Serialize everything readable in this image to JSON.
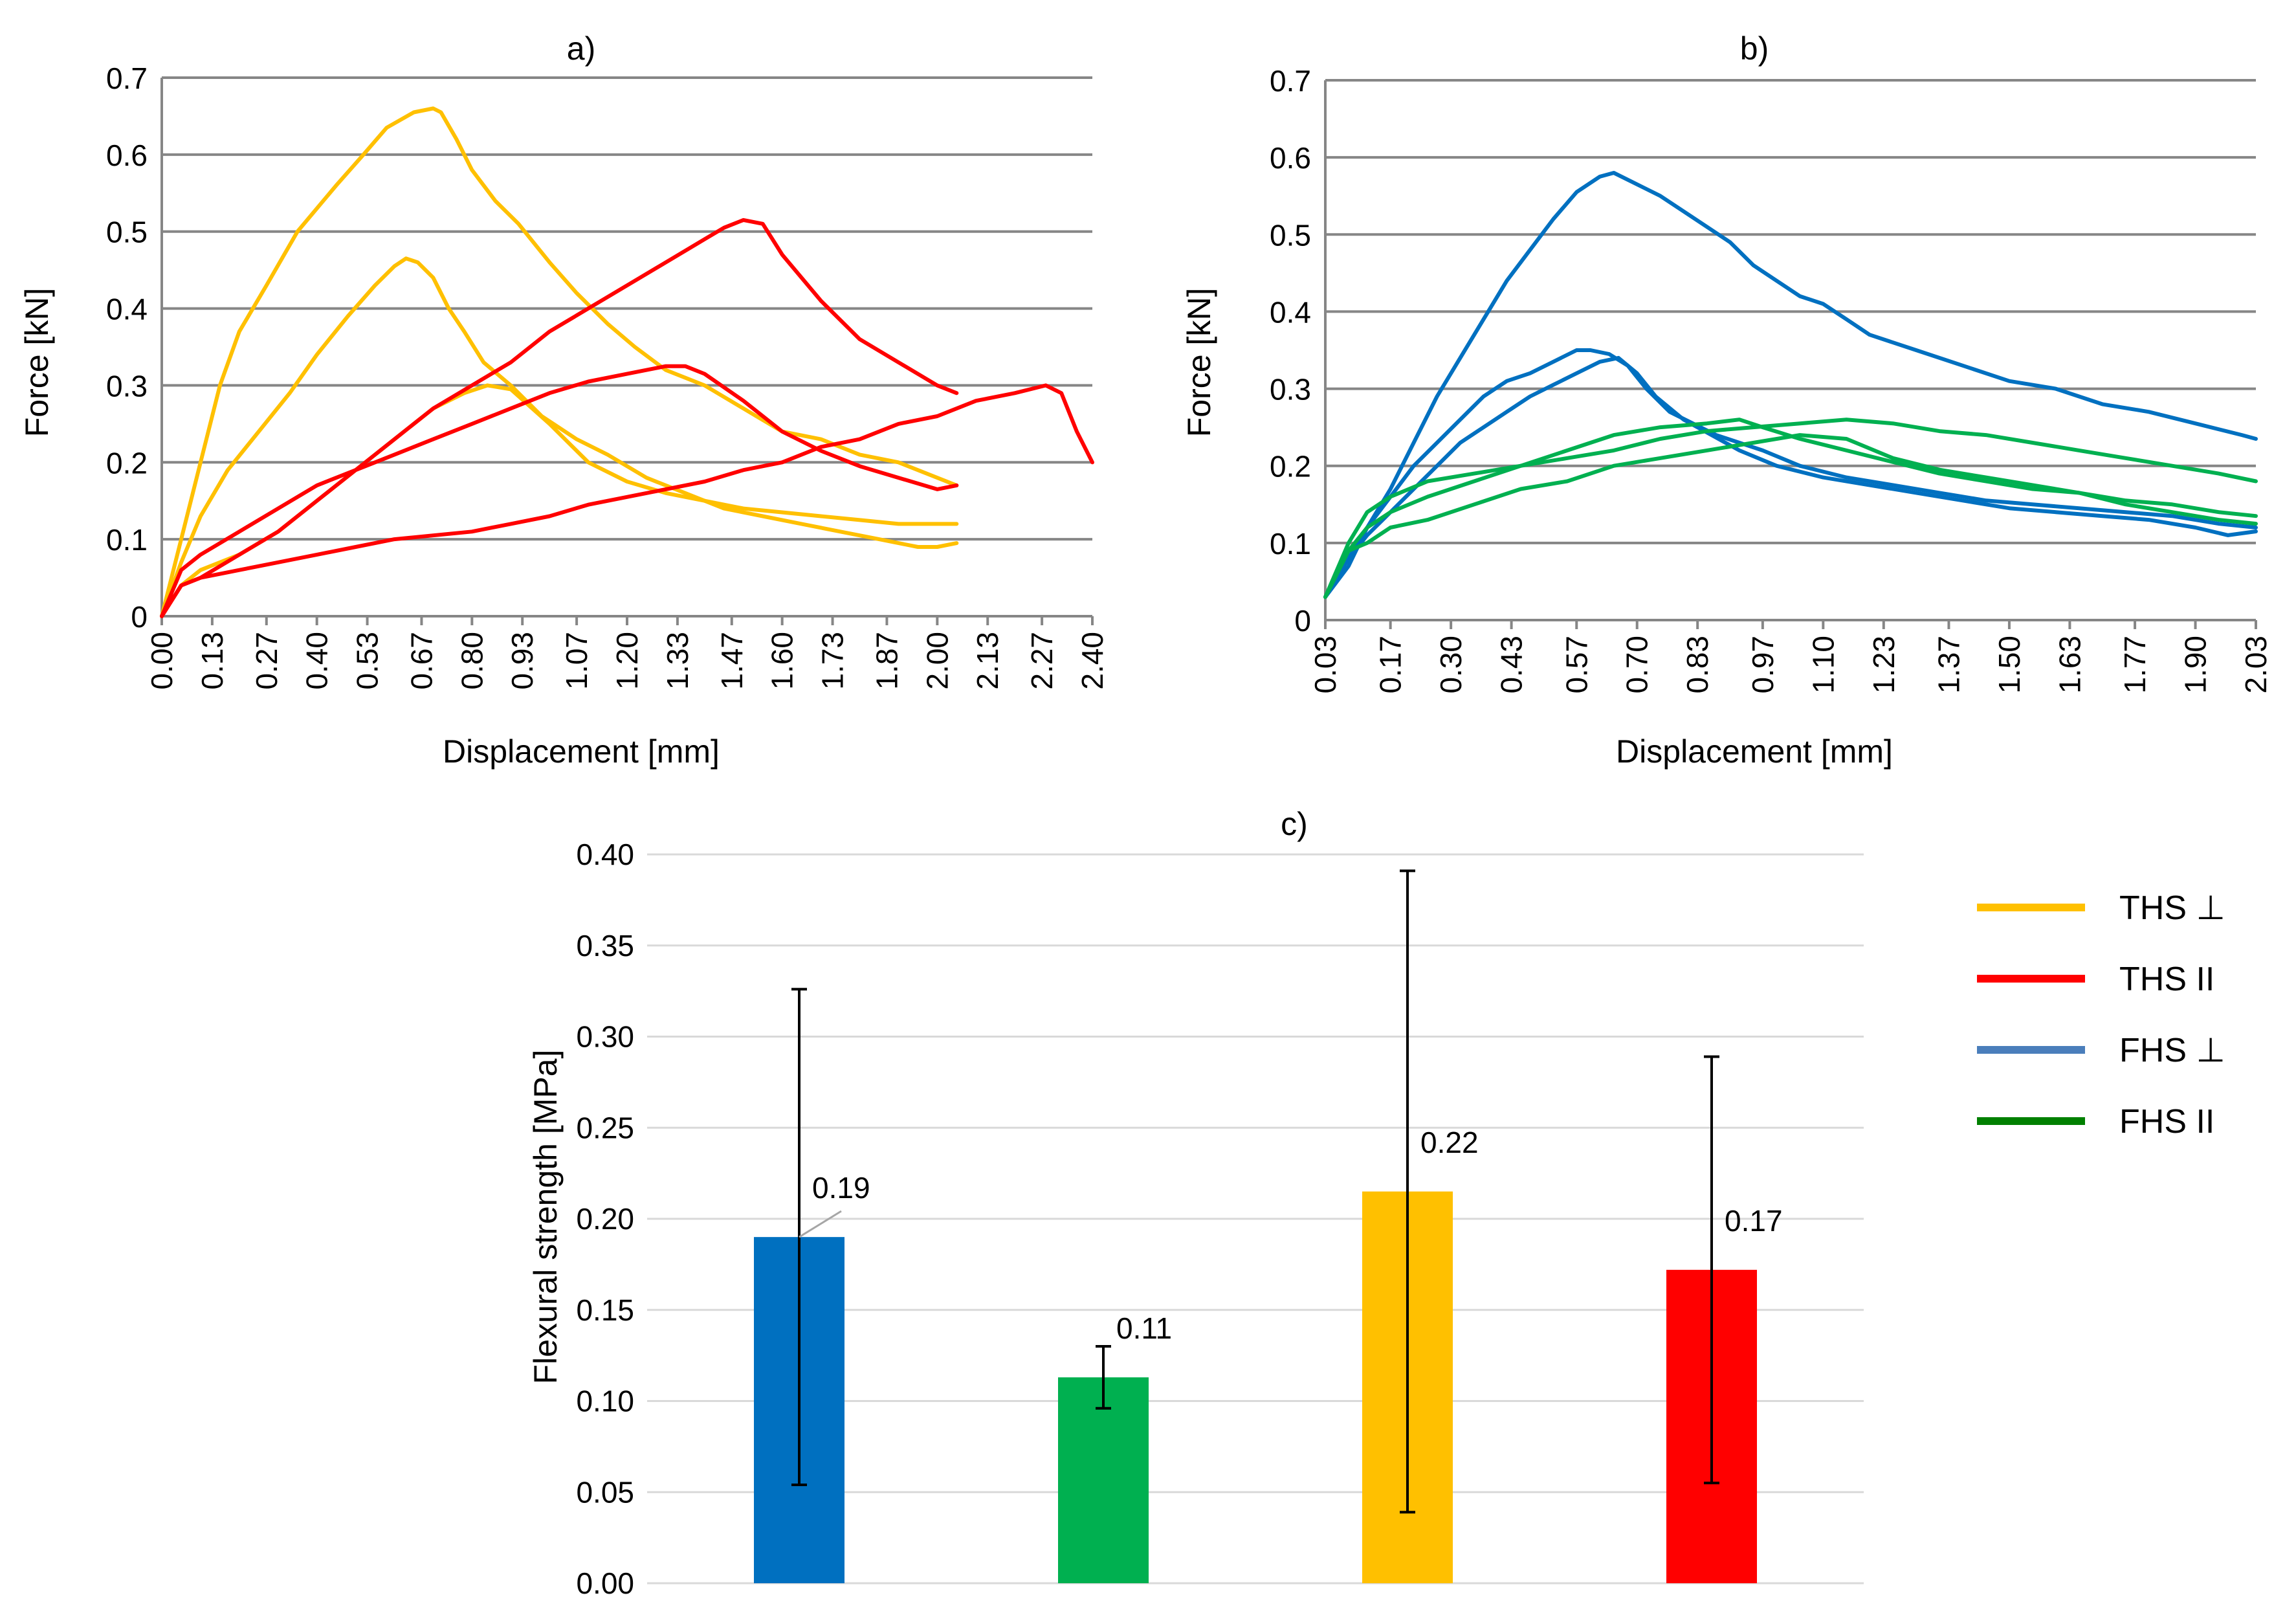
{
  "chart_data": [
    {
      "panel": "a)",
      "type": "line",
      "title": "a)",
      "xlabel": "Displacement [mm]",
      "ylabel": "Force [kN]",
      "xlim": [
        0.0,
        2.4
      ],
      "ylim": [
        0,
        0.7
      ],
      "yticks": [
        "0",
        "0.1",
        "0.2",
        "0.3",
        "0.4",
        "0.5",
        "0.6",
        "0.7"
      ],
      "xticks": [
        "0.00",
        "0.13",
        "0.27",
        "0.40",
        "0.53",
        "0.67",
        "0.80",
        "0.93",
        "1.07",
        "1.20",
        "1.33",
        "1.47",
        "1.60",
        "1.73",
        "1.87",
        "2.00",
        "2.13",
        "2.27",
        "2.40"
      ],
      "grid": true,
      "series": [
        {
          "name": "THS ⊥",
          "color": "#FFC000",
          "x": [
            0,
            0.05,
            0.1,
            0.15,
            0.2,
            0.27,
            0.35,
            0.45,
            0.52,
            0.58,
            0.65,
            0.7,
            0.72,
            0.76,
            0.8,
            0.86,
            0.92,
            1.0,
            1.07,
            1.15,
            1.22,
            1.3,
            1.4,
            1.5,
            1.6,
            1.7,
            1.8,
            1.9,
            2.0,
            2.05
          ],
          "y": [
            0,
            0.1,
            0.2,
            0.3,
            0.37,
            0.43,
            0.5,
            0.56,
            0.6,
            0.635,
            0.655,
            0.66,
            0.655,
            0.62,
            0.58,
            0.54,
            0.51,
            0.46,
            0.42,
            0.38,
            0.35,
            0.32,
            0.3,
            0.27,
            0.24,
            0.23,
            0.21,
            0.2,
            0.18,
            0.17
          ]
        },
        {
          "name": "THS ⊥",
          "color": "#FFC000",
          "x": [
            0,
            0.05,
            0.1,
            0.17,
            0.25,
            0.33,
            0.4,
            0.48,
            0.55,
            0.6,
            0.63,
            0.66,
            0.7,
            0.74,
            0.78,
            0.83,
            0.9,
            0.98,
            1.07,
            1.15,
            1.25,
            1.35,
            1.45,
            1.55,
            1.65,
            1.75,
            1.85,
            1.95,
            2.0,
            2.05
          ],
          "y": [
            0,
            0.07,
            0.13,
            0.19,
            0.24,
            0.29,
            0.34,
            0.39,
            0.43,
            0.455,
            0.465,
            0.46,
            0.44,
            0.4,
            0.37,
            0.33,
            0.3,
            0.26,
            0.23,
            0.21,
            0.18,
            0.16,
            0.14,
            0.13,
            0.12,
            0.11,
            0.1,
            0.09,
            0.09,
            0.095
          ]
        },
        {
          "name": "THS ⊥",
          "color": "#FFC000",
          "x": [
            0,
            0.05,
            0.1,
            0.2,
            0.3,
            0.4,
            0.5,
            0.6,
            0.7,
            0.78,
            0.84,
            0.9,
            1.0,
            1.1,
            1.2,
            1.3,
            1.4,
            1.5,
            1.6,
            1.7,
            1.8,
            1.9,
            2.0,
            2.05
          ],
          "y": [
            0,
            0.04,
            0.06,
            0.08,
            0.11,
            0.15,
            0.19,
            0.23,
            0.27,
            0.29,
            0.3,
            0.295,
            0.25,
            0.2,
            0.175,
            0.16,
            0.15,
            0.14,
            0.135,
            0.13,
            0.125,
            0.12,
            0.12,
            0.12
          ]
        },
        {
          "name": "THS II",
          "color": "#FF0000",
          "x": [
            0,
            0.05,
            0.1,
            0.2,
            0.3,
            0.4,
            0.5,
            0.6,
            0.7,
            0.8,
            0.9,
            1.0,
            1.1,
            1.2,
            1.3,
            1.4,
            1.45,
            1.5,
            1.55,
            1.6,
            1.7,
            1.8,
            1.9,
            2.0,
            2.05
          ],
          "y": [
            0,
            0.04,
            0.05,
            0.08,
            0.11,
            0.15,
            0.19,
            0.23,
            0.27,
            0.3,
            0.33,
            0.37,
            0.4,
            0.43,
            0.46,
            0.49,
            0.505,
            0.515,
            0.51,
            0.47,
            0.41,
            0.36,
            0.33,
            0.3,
            0.29
          ]
        },
        {
          "name": "THS II",
          "color": "#FF0000",
          "x": [
            0,
            0.05,
            0.1,
            0.2,
            0.3,
            0.4,
            0.5,
            0.6,
            0.7,
            0.8,
            0.9,
            1.0,
            1.1,
            1.2,
            1.3,
            1.35,
            1.4,
            1.5,
            1.6,
            1.7,
            1.8,
            1.9,
            2.0,
            2.05
          ],
          "y": [
            0,
            0.06,
            0.08,
            0.11,
            0.14,
            0.17,
            0.19,
            0.21,
            0.23,
            0.25,
            0.27,
            0.29,
            0.305,
            0.315,
            0.325,
            0.325,
            0.315,
            0.28,
            0.24,
            0.215,
            0.195,
            0.18,
            0.165,
            0.17
          ]
        },
        {
          "name": "THS II",
          "color": "#FF0000",
          "x": [
            0,
            0.05,
            0.1,
            0.2,
            0.3,
            0.4,
            0.5,
            0.6,
            0.7,
            0.8,
            0.9,
            1.0,
            1.1,
            1.2,
            1.3,
            1.4,
            1.5,
            1.6,
            1.7,
            1.8,
            1.9,
            2.0,
            2.1,
            2.2,
            2.28,
            2.32,
            2.36,
            2.4
          ],
          "y": [
            0,
            0.04,
            0.05,
            0.06,
            0.07,
            0.08,
            0.09,
            0.1,
            0.105,
            0.11,
            0.12,
            0.13,
            0.145,
            0.155,
            0.165,
            0.175,
            0.19,
            0.2,
            0.22,
            0.23,
            0.25,
            0.26,
            0.28,
            0.29,
            0.3,
            0.29,
            0.24,
            0.2
          ]
        }
      ]
    },
    {
      "panel": "b)",
      "type": "line",
      "title": "b)",
      "xlabel": "Displacement [mm]",
      "ylabel": "Force [kN]",
      "xlim": [
        0.03,
        2.03
      ],
      "ylim": [
        0,
        0.7
      ],
      "yticks": [
        "0",
        "0.1",
        "0.2",
        "0.3",
        "0.4",
        "0.5",
        "0.6",
        "0.7"
      ],
      "xticks": [
        "0.03",
        "0.17",
        "0.30",
        "0.43",
        "0.57",
        "0.70",
        "0.83",
        "0.97",
        "1.10",
        "1.23",
        "1.37",
        "1.50",
        "1.63",
        "1.77",
        "1.90",
        "2.03"
      ],
      "grid": true,
      "series": [
        {
          "name": "FHS ⊥",
          "color": "#0070C0",
          "x": [
            0.03,
            0.08,
            0.12,
            0.17,
            0.22,
            0.27,
            0.32,
            0.37,
            0.42,
            0.47,
            0.52,
            0.57,
            0.62,
            0.65,
            0.7,
            0.75,
            0.8,
            0.85,
            0.9,
            0.95,
            1.0,
            1.05,
            1.1,
            1.15,
            1.2,
            1.3,
            1.4,
            1.5,
            1.6,
            1.7,
            1.8,
            1.9,
            2.0,
            2.03
          ],
          "y": [
            0.03,
            0.07,
            0.12,
            0.17,
            0.23,
            0.29,
            0.34,
            0.39,
            0.44,
            0.48,
            0.52,
            0.555,
            0.575,
            0.58,
            0.565,
            0.55,
            0.53,
            0.51,
            0.49,
            0.46,
            0.44,
            0.42,
            0.41,
            0.39,
            0.37,
            0.35,
            0.33,
            0.31,
            0.3,
            0.28,
            0.27,
            0.255,
            0.24,
            0.235
          ]
        },
        {
          "name": "FHS ⊥",
          "color": "#0070C0",
          "x": [
            0.03,
            0.08,
            0.12,
            0.17,
            0.22,
            0.27,
            0.32,
            0.37,
            0.42,
            0.47,
            0.52,
            0.57,
            0.6,
            0.64,
            0.68,
            0.72,
            0.77,
            0.82,
            0.87,
            0.92,
            0.97,
            1.05,
            1.15,
            1.25,
            1.35,
            1.45,
            1.55,
            1.65,
            1.75,
            1.85,
            1.95,
            2.03
          ],
          "y": [
            0.03,
            0.08,
            0.12,
            0.16,
            0.2,
            0.23,
            0.26,
            0.29,
            0.31,
            0.32,
            0.335,
            0.35,
            0.35,
            0.345,
            0.33,
            0.3,
            0.27,
            0.255,
            0.24,
            0.23,
            0.22,
            0.2,
            0.185,
            0.175,
            0.165,
            0.155,
            0.15,
            0.145,
            0.14,
            0.135,
            0.125,
            0.12
          ]
        },
        {
          "name": "FHS ⊥",
          "color": "#0070C0",
          "x": [
            0.03,
            0.08,
            0.12,
            0.17,
            0.22,
            0.27,
            0.32,
            0.37,
            0.42,
            0.47,
            0.52,
            0.57,
            0.62,
            0.66,
            0.7,
            0.74,
            0.8,
            0.86,
            0.92,
            1.0,
            1.1,
            1.2,
            1.3,
            1.4,
            1.5,
            1.6,
            1.7,
            1.8,
            1.9,
            1.97,
            2.03
          ],
          "y": [
            0.03,
            0.08,
            0.11,
            0.14,
            0.17,
            0.2,
            0.23,
            0.25,
            0.27,
            0.29,
            0.305,
            0.32,
            0.335,
            0.34,
            0.32,
            0.29,
            0.26,
            0.24,
            0.22,
            0.2,
            0.185,
            0.175,
            0.165,
            0.155,
            0.145,
            0.14,
            0.135,
            0.13,
            0.12,
            0.11,
            0.115
          ]
        },
        {
          "name": "FHS II",
          "color": "#00B050",
          "x": [
            0.03,
            0.08,
            0.12,
            0.17,
            0.25,
            0.35,
            0.45,
            0.55,
            0.65,
            0.75,
            0.85,
            0.95,
            1.05,
            1.15,
            1.25,
            1.35,
            1.45,
            1.55,
            1.65,
            1.75,
            1.85,
            1.95,
            2.03
          ],
          "y": [
            0.03,
            0.1,
            0.14,
            0.16,
            0.18,
            0.19,
            0.2,
            0.21,
            0.22,
            0.235,
            0.245,
            0.25,
            0.255,
            0.26,
            0.255,
            0.245,
            0.24,
            0.23,
            0.22,
            0.21,
            0.2,
            0.19,
            0.18
          ]
        },
        {
          "name": "FHS II",
          "color": "#00B050",
          "x": [
            0.03,
            0.08,
            0.12,
            0.17,
            0.25,
            0.35,
            0.45,
            0.55,
            0.65,
            0.75,
            0.85,
            0.92,
            0.97,
            1.05,
            1.15,
            1.25,
            1.35,
            1.45,
            1.55,
            1.65,
            1.75,
            1.85,
            1.95,
            2.03
          ],
          "y": [
            0.03,
            0.09,
            0.12,
            0.14,
            0.16,
            0.18,
            0.2,
            0.22,
            0.24,
            0.25,
            0.255,
            0.26,
            0.25,
            0.235,
            0.22,
            0.205,
            0.19,
            0.18,
            0.17,
            0.165,
            0.155,
            0.15,
            0.14,
            0.135
          ]
        },
        {
          "name": "FHS II",
          "color": "#00B050",
          "x": [
            0.03,
            0.08,
            0.12,
            0.17,
            0.25,
            0.35,
            0.45,
            0.55,
            0.65,
            0.75,
            0.85,
            0.95,
            1.05,
            1.15,
            1.25,
            1.35,
            1.45,
            1.55,
            1.65,
            1.75,
            1.85,
            1.95,
            2.03
          ],
          "y": [
            0.03,
            0.09,
            0.1,
            0.12,
            0.13,
            0.15,
            0.17,
            0.18,
            0.2,
            0.21,
            0.22,
            0.23,
            0.24,
            0.235,
            0.21,
            0.195,
            0.185,
            0.175,
            0.165,
            0.15,
            0.14,
            0.13,
            0.125
          ]
        }
      ]
    },
    {
      "panel": "c)",
      "type": "bar",
      "title": "c)",
      "xlabel": "",
      "ylabel": "Flexural strength [MPa]",
      "ylim": [
        0,
        0.4
      ],
      "yticks": [
        "0.00",
        "0.05",
        "0.10",
        "0.15",
        "0.20",
        "0.25",
        "0.30",
        "0.35",
        "0.40"
      ],
      "grid": true,
      "categories": [
        "FHS ⊥",
        "FHS II",
        "THS ⊥",
        "THS II"
      ],
      "values": [
        0.19,
        0.113,
        0.215,
        0.172
      ],
      "errors": [
        0.136,
        0.017,
        0.176,
        0.117
      ],
      "value_labels": [
        "0.19",
        "0.11",
        "0.22",
        "0.17"
      ],
      "colors": [
        "#0070C0",
        "#00B050",
        "#FFC000",
        "#FF0000"
      ]
    }
  ],
  "legend": {
    "position": "right",
    "items": [
      {
        "label": "THS ⊥",
        "color": "#FFC000"
      },
      {
        "label": "THS II",
        "color": "#FF0000"
      },
      {
        "label": "FHS ⊥",
        "color": "#4A7EBB"
      },
      {
        "label": "FHS II",
        "color": "#008000"
      }
    ]
  }
}
